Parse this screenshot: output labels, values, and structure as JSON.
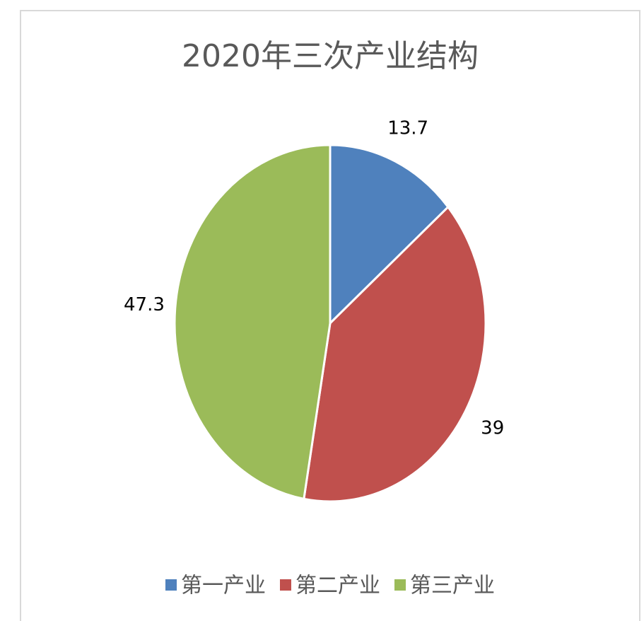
{
  "chart_data": {
    "type": "pie",
    "title": "2020年三次产业结构",
    "categories": [
      "第一产业",
      "第二产业",
      "第三产业"
    ],
    "values": [
      13.7,
      39,
      47.3
    ],
    "colors": [
      "#4f81bd",
      "#c0504d",
      "#9bbb59"
    ],
    "legend": "bottom"
  }
}
